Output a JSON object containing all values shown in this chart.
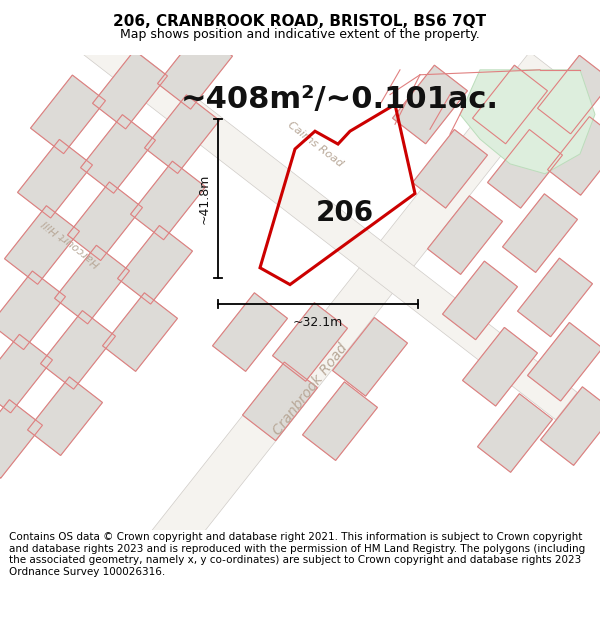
{
  "title_line1": "206, CRANBROOK ROAD, BRISTOL, BS6 7QT",
  "title_line2": "Map shows position and indicative extent of the property.",
  "area_text": "~408m²/~0.101ac.",
  "label_206": "206",
  "dim_height": "~41.8m",
  "dim_width": "~32.1m",
  "road_label1": "Cranbrook Road",
  "road_label2": "Cairns Road",
  "road_label3": "Harcourt Hill",
  "footer_text": "Contains OS data © Crown copyright and database right 2021. This information is subject to Crown copyright and database rights 2023 and is reproduced with the permission of HM Land Registry. The polygons (including the associated geometry, namely x, y co-ordinates) are subject to Crown copyright and database rights 2023 Ordnance Survey 100026316.",
  "bg_color": "#f5f5f5",
  "map_bg": "#eeece8",
  "property_color": "#cc0000",
  "block_fc": "#dddbd7",
  "block_ec": "#c8c5c0",
  "red_line": "#e08080",
  "green_area": "#ddeedd",
  "green_ec": "#bbddbb",
  "road_label_color": "#b8a898",
  "title_fontsize": 11,
  "subtitle_fontsize": 9,
  "area_fontsize": 22,
  "footer_fontsize": 7.5
}
